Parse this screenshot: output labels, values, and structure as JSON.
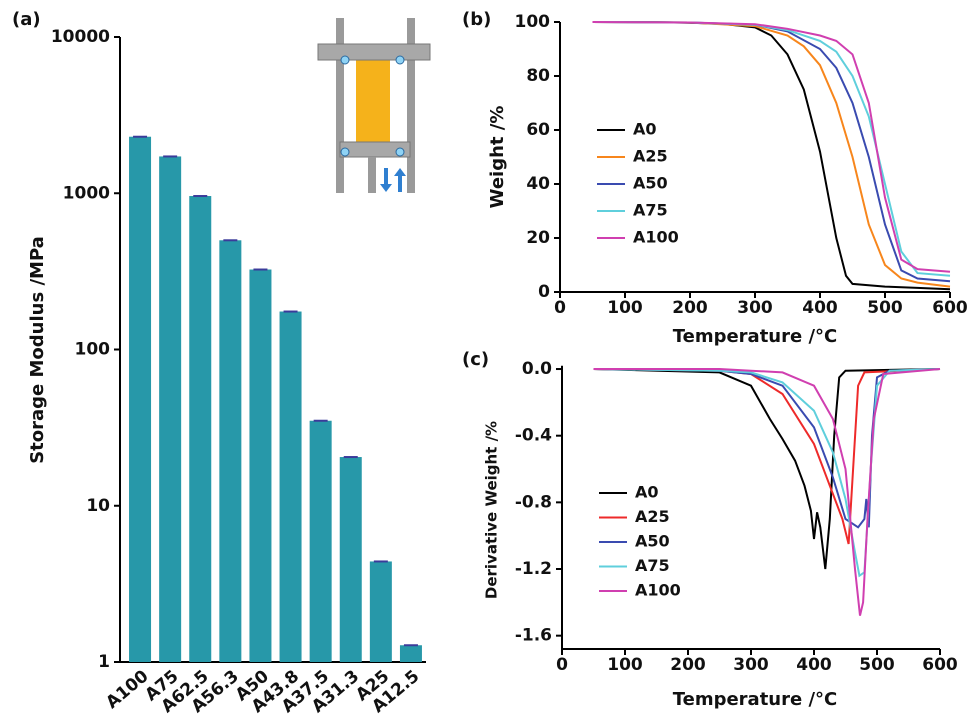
{
  "chart_data": [
    {
      "type": "bar",
      "panel_label": "(a)",
      "ylabel": "Storage Modulus /MPa",
      "log_scale": true,
      "categories": [
        "A100",
        "A75",
        "A62.5",
        "A56.3",
        "A50",
        "A43.8",
        "A37.5",
        "A31.3",
        "A25",
        "A12.5"
      ],
      "values": [
        2300,
        1720,
        960,
        500,
        325,
        175,
        35,
        20.5,
        4.4,
        1.28
      ],
      "color": "#2798a9",
      "ylim": [
        1,
        10000
      ],
      "yticks": [
        1,
        10,
        100,
        1000,
        10000
      ]
    },
    {
      "type": "line",
      "panel_label": "(b)",
      "xlabel": "Temperature /°C",
      "ylabel": "Weight /%",
      "xlim": [
        0,
        600
      ],
      "ylim": [
        0,
        100
      ],
      "xticks": [
        0,
        100,
        200,
        300,
        400,
        500,
        600
      ],
      "yticks": [
        0,
        20,
        40,
        60,
        80,
        100
      ],
      "legend": "left",
      "series": [
        {
          "name": "A0",
          "color": "#000000",
          "x": [
            50,
            100,
            150,
            200,
            250,
            300,
            325,
            350,
            375,
            400,
            425,
            440,
            450,
            500,
            550,
            600
          ],
          "values": [
            100,
            100,
            99.9,
            99.7,
            99.3,
            98,
            95,
            88,
            75,
            52,
            20,
            6,
            3,
            2,
            1.5,
            1
          ]
        },
        {
          "name": "A25",
          "color": "#f7861c",
          "x": [
            50,
            200,
            300,
            350,
            375,
            400,
            425,
            450,
            475,
            500,
            525,
            550,
            600
          ],
          "values": [
            100,
            99.8,
            98.5,
            95,
            91,
            84,
            70,
            50,
            25,
            10,
            5,
            3.5,
            2
          ]
        },
        {
          "name": "A50",
          "color": "#3a4bb0",
          "x": [
            50,
            200,
            300,
            350,
            400,
            425,
            450,
            475,
            500,
            525,
            550,
            600
          ],
          "values": [
            100,
            99.8,
            99,
            96.5,
            90,
            83,
            70,
            50,
            25,
            8,
            5,
            4
          ]
        },
        {
          "name": "A75",
          "color": "#5fcfdc",
          "x": [
            50,
            200,
            300,
            350,
            400,
            425,
            450,
            475,
            500,
            525,
            550,
            600
          ],
          "values": [
            100,
            99.8,
            99,
            97,
            93,
            89,
            80,
            65,
            40,
            15,
            7,
            6
          ]
        },
        {
          "name": "A100",
          "color": "#d03fb0",
          "x": [
            50,
            200,
            300,
            350,
            400,
            425,
            450,
            475,
            500,
            525,
            550,
            600
          ],
          "values": [
            100,
            99.8,
            99.2,
            97.5,
            95,
            93,
            88,
            70,
            35,
            12,
            8.5,
            7.5
          ]
        }
      ]
    },
    {
      "type": "line",
      "panel_label": "(c)",
      "xlabel": "Temperature /°C",
      "ylabel": "Derivative Weight /%",
      "xlim": [
        0,
        600
      ],
      "ylim": [
        -1.68,
        0.02
      ],
      "xticks": [
        0,
        100,
        200,
        300,
        400,
        500,
        600
      ],
      "yticks": [
        {
          "value": 0,
          "label": "0.0"
        },
        -0.4,
        -0.8,
        -1.2,
        -1.6
      ],
      "legend": "left",
      "series": [
        {
          "name": "A0",
          "color": "#000000",
          "x": [
            50,
            250,
            300,
            330,
            350,
            370,
            385,
            395,
            400,
            405,
            410,
            418,
            425,
            432,
            440,
            450,
            600
          ],
          "values": [
            0,
            -0.02,
            -0.1,
            -0.3,
            -0.42,
            -0.55,
            -0.7,
            -0.85,
            -1.02,
            -0.86,
            -0.95,
            -1.2,
            -0.9,
            -0.4,
            -0.05,
            -0.01,
            0
          ]
        },
        {
          "name": "A25",
          "color": "#ee2a2a",
          "x": [
            50,
            250,
            300,
            350,
            400,
            425,
            445,
            455,
            462,
            470,
            480,
            600
          ],
          "values": [
            0,
            -0.01,
            -0.03,
            -0.15,
            -0.45,
            -0.7,
            -0.9,
            -1.05,
            -0.6,
            -0.1,
            -0.02,
            0
          ]
        },
        {
          "name": "A50",
          "color": "#3a4bb0",
          "x": [
            50,
            250,
            300,
            350,
            400,
            430,
            450,
            470,
            480,
            483,
            487,
            492,
            500,
            520,
            600
          ],
          "values": [
            0,
            -0.01,
            -0.03,
            -0.1,
            -0.35,
            -0.65,
            -0.9,
            -0.95,
            -0.9,
            -0.78,
            -0.95,
            -0.4,
            -0.05,
            -0.01,
            0
          ]
        },
        {
          "name": "A75",
          "color": "#5fcfdc",
          "x": [
            50,
            250,
            300,
            350,
            400,
            430,
            450,
            465,
            472,
            480,
            490,
            500,
            520,
            600
          ],
          "values": [
            0,
            -0.01,
            -0.02,
            -0.08,
            -0.25,
            -0.5,
            -0.78,
            -1.1,
            -1.24,
            -1.22,
            -0.6,
            -0.1,
            -0.01,
            0
          ]
        },
        {
          "name": "A100",
          "color": "#d03fb0",
          "x": [
            50,
            250,
            300,
            350,
            400,
            430,
            450,
            465,
            473,
            478,
            485,
            495,
            510,
            600
          ],
          "values": [
            0,
            0,
            -0.01,
            -0.02,
            -0.1,
            -0.3,
            -0.6,
            -1.2,
            -1.48,
            -1.4,
            -0.9,
            -0.3,
            -0.03,
            0
          ]
        }
      ]
    }
  ]
}
